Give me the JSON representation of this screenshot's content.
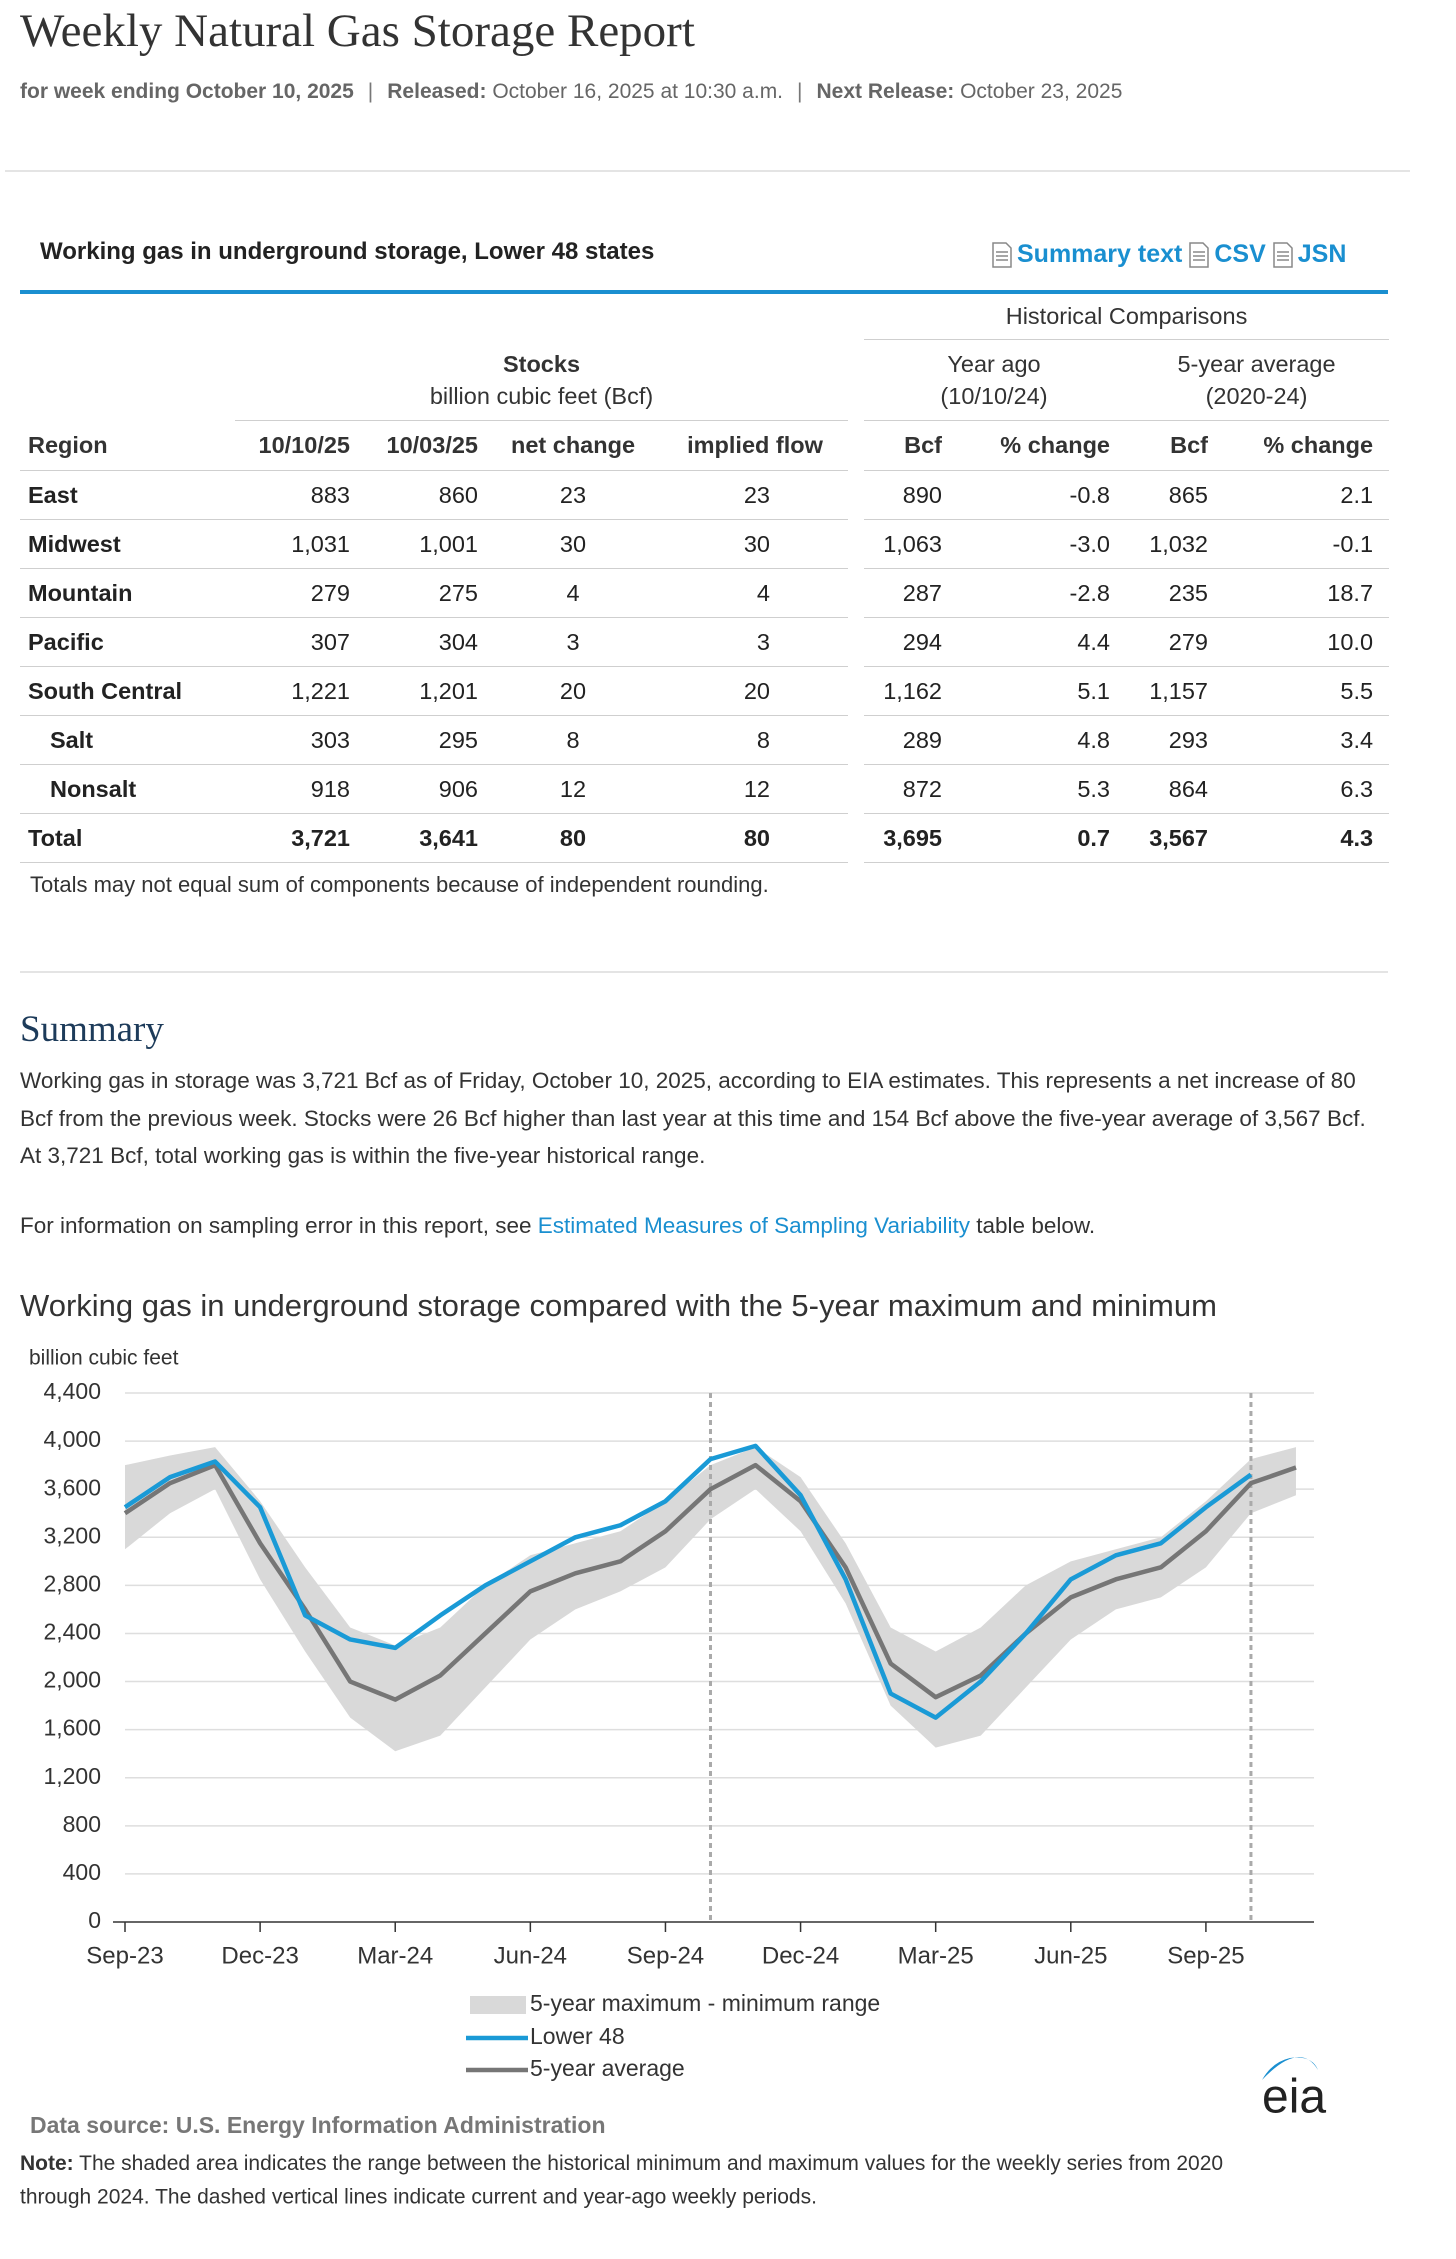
{
  "header": {
    "title": "Weekly Natural Gas Storage Report",
    "week": "for week ending October 10, 2025",
    "separator": "|",
    "released_label": "Released:",
    "released": "October 16, 2025 at 10:30 a.m.",
    "next_label": "Next Release:",
    "next": "October 23, 2025"
  },
  "table": {
    "title": "Working gas in underground storage, Lower 48 states",
    "links": [
      "Summary text",
      "CSV",
      "JSN"
    ],
    "historical": "Historical Comparisons",
    "stocks": [
      "Stocks",
      "billion cubic feet (Bcf)"
    ],
    "year_ago": [
      "Year ago",
      "(10/10/24)"
    ],
    "five_year": [
      "5-year average",
      "(2020-24)"
    ],
    "columns": [
      "Region",
      "10/10/25",
      "10/03/25",
      "net change",
      "implied flow",
      "Bcf",
      "% change",
      "Bcf",
      "% change"
    ],
    "rows": [
      [
        "East",
        "883",
        "860",
        "23",
        "23",
        "890",
        "-0.8",
        "865",
        "2.1"
      ],
      [
        "Midwest",
        "1,031",
        "1,001",
        "30",
        "30",
        "1,063",
        "-3.0",
        "1,032",
        "-0.1"
      ],
      [
        "Mountain",
        "279",
        "275",
        "4",
        "4",
        "287",
        "-2.8",
        "235",
        "18.7"
      ],
      [
        "Pacific",
        "307",
        "304",
        "3",
        "3",
        "294",
        "4.4",
        "279",
        "10.0"
      ],
      [
        "South Central",
        "1,221",
        "1,201",
        "20",
        "20",
        "1,162",
        "5.1",
        "1,157",
        "5.5"
      ],
      [
        "Salt",
        "303",
        "295",
        "8",
        "8",
        "289",
        "4.8",
        "293",
        "3.4"
      ],
      [
        "Nonsalt",
        "918",
        "906",
        "12",
        "12",
        "872",
        "5.3",
        "864",
        "6.3"
      ],
      [
        "Total",
        "3,721",
        "3,641",
        "80",
        "80",
        "3,695",
        "0.7",
        "3,567",
        "4.3"
      ]
    ],
    "footnote": "Totals may not equal sum of components because of independent rounding."
  },
  "summary": {
    "heading": "Summary",
    "text": "Working gas in storage was 3,721 Bcf as of Friday, October 10, 2025, according to EIA estimates. This represents a net increase of 80 Bcf from the previous week. Stocks were 26 Bcf higher than last year at this time and 154 Bcf above the five-year average of 3,567 Bcf. At 3,721 Bcf, total working gas is within the five-year historical range.",
    "sampling_before": "For information on sampling error in this report, see",
    "sampling_link": "Estimated Measures of Sampling Variability",
    "sampling_after": "table below."
  },
  "chart_data": {
    "type": "line",
    "title": "Working gas in underground  storage compared with the 5-year maximum  and minimum",
    "y_label": "billion cubic feet",
    "categories": [
      "Sep-23",
      null,
      null,
      "Dec-23",
      null,
      null,
      "Mar-24",
      null,
      null,
      "Jun-24",
      null,
      null,
      "Sep-24",
      null,
      null,
      "Dec-24",
      null,
      null,
      "Mar-25",
      null,
      null,
      "Jun-25",
      null,
      null,
      "Sep-25",
      null,
      null
    ],
    "series": [
      {
        "name": "5-year maximum - minimum range",
        "color": "#d9d9d9",
        "values": [
          3800,
          3880,
          3950,
          3500,
          2950,
          2450,
          2300,
          2450,
          2800,
          3050,
          3150,
          3250,
          3500,
          3800,
          3950,
          3700,
          3150,
          2450,
          2250,
          2450,
          2800,
          3000,
          3100,
          3200,
          3500,
          3850,
          3950
        ],
        "min_values": [
          3100,
          3400,
          3600,
          2850,
          2250,
          1700,
          1420,
          1550,
          1950,
          2350,
          2600,
          2750,
          2950,
          3350,
          3600,
          3250,
          2650,
          1800,
          1450,
          1550,
          1950,
          2350,
          2600,
          2700,
          2950,
          3400,
          3550
        ]
      },
      {
        "name": "Lower 48",
        "color": "#1a9ad6",
        "values": [
          3450,
          3700,
          3830,
          3450,
          2550,
          2350,
          2280,
          2550,
          2800,
          3000,
          3200,
          3300,
          3500,
          3850,
          3960,
          3550,
          2850,
          1900,
          1700,
          2000,
          2400,
          2850,
          3050,
          3150,
          3450,
          3721,
          null
        ]
      },
      {
        "name": "5-year average",
        "color": "#767676",
        "values": [
          3400,
          3650,
          3800,
          3150,
          2600,
          2000,
          1850,
          2050,
          2400,
          2750,
          2900,
          3000,
          3250,
          3600,
          3800,
          3500,
          2950,
          2150,
          1870,
          2050,
          2400,
          2700,
          2850,
          2950,
          3250,
          3650,
          3780
        ]
      }
    ],
    "ylim": [
      0,
      4400
    ],
    "yticks": [
      0,
      400,
      800,
      {
        "value": 1200,
        "label": "1,200"
      },
      {
        "value": 1600,
        "label": "1,600"
      },
      {
        "value": 2000,
        "label": "2,000"
      },
      {
        "value": 2400,
        "label": "2,400"
      },
      {
        "value": 2800,
        "label": "2,800"
      },
      {
        "value": 3200,
        "label": "3,200"
      },
      {
        "value": 3600,
        "label": "3,600"
      },
      {
        "value": 4000,
        "label": "4,000"
      },
      {
        "value": 4400,
        "label": "4,400"
      }
    ],
    "grid": true,
    "legend": "bottom",
    "source": "Data source:  U.S. Energy Information Administration",
    "logo": "eia",
    "note_label": "Note:",
    "note": [
      "The shaded area indicates the range between the historical minimum and maximum values for the weekly series from 2020",
      "through 2024. The dashed vertical lines indicate current and year-ago weekly periods."
    ]
  }
}
